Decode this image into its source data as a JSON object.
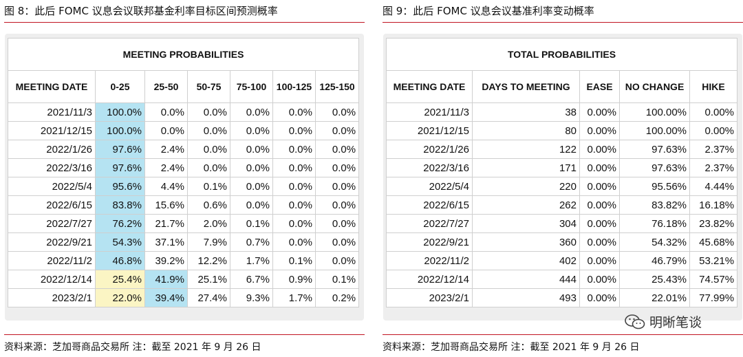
{
  "left": {
    "figure_title": "图 8：此后 FOMC 议息会议联邦基金利率目标区间预测概率",
    "table_title": "MEETING PROBABILITIES",
    "columns": [
      "MEETING DATE",
      "0-25",
      "25-50",
      "50-75",
      "75-100",
      "100-125",
      "125-150"
    ],
    "rows": [
      [
        "2021/11/3",
        "100.0%",
        "0.0%",
        "0.0%",
        "0.0%",
        "0.0%",
        "0.0%"
      ],
      [
        "2021/12/15",
        "100.0%",
        "0.0%",
        "0.0%",
        "0.0%",
        "0.0%",
        "0.0%"
      ],
      [
        "2022/1/26",
        "97.6%",
        "2.4%",
        "0.0%",
        "0.0%",
        "0.0%",
        "0.0%"
      ],
      [
        "2022/3/16",
        "97.6%",
        "2.4%",
        "0.0%",
        "0.0%",
        "0.0%",
        "0.0%"
      ],
      [
        "2022/5/4",
        "95.6%",
        "4.4%",
        "0.1%",
        "0.0%",
        "0.0%",
        "0.0%"
      ],
      [
        "2022/6/15",
        "83.8%",
        "15.6%",
        "0.6%",
        "0.0%",
        "0.0%",
        "0.0%"
      ],
      [
        "2022/7/27",
        "76.2%",
        "21.7%",
        "2.0%",
        "0.1%",
        "0.0%",
        "0.0%"
      ],
      [
        "2022/9/21",
        "54.3%",
        "37.1%",
        "7.9%",
        "0.7%",
        "0.0%",
        "0.0%"
      ],
      [
        "2022/11/2",
        "46.8%",
        "39.2%",
        "12.2%",
        "1.7%",
        "0.1%",
        "0.0%"
      ],
      [
        "2022/12/14",
        "25.4%",
        "41.9%",
        "25.1%",
        "6.7%",
        "0.9%",
        "0.1%"
      ],
      [
        "2023/2/1",
        "22.0%",
        "39.4%",
        "27.4%",
        "9.3%",
        "1.7%",
        "0.2%"
      ]
    ],
    "highlight_colors": {
      "blue": "#b5e3f2",
      "yellow": "#fbf5c4"
    },
    "source": "资料来源：芝加哥商品交易所 注：截至 2021 年 9 月 26 日"
  },
  "right": {
    "figure_title": "图 9：此后 FOMC 议息会议基准利率变动概率",
    "table_title": "TOTAL PROBABILITIES",
    "columns": [
      "MEETING DATE",
      "DAYS TO MEETING",
      "EASE",
      "NO CHANGE",
      "HIKE"
    ],
    "rows": [
      [
        "2021/11/3",
        "38",
        "0.00%",
        "100.00%",
        "0.00%"
      ],
      [
        "2021/12/15",
        "80",
        "0.00%",
        "100.00%",
        "0.00%"
      ],
      [
        "2022/1/26",
        "122",
        "0.00%",
        "97.63%",
        "2.37%"
      ],
      [
        "2022/3/16",
        "171",
        "0.00%",
        "97.63%",
        "2.37%"
      ],
      [
        "2022/5/4",
        "220",
        "0.00%",
        "95.56%",
        "4.44%"
      ],
      [
        "2022/6/15",
        "262",
        "0.00%",
        "83.82%",
        "16.18%"
      ],
      [
        "2022/7/27",
        "304",
        "0.00%",
        "76.18%",
        "23.82%"
      ],
      [
        "2022/9/21",
        "360",
        "0.00%",
        "54.32%",
        "45.68%"
      ],
      [
        "2022/11/2",
        "402",
        "0.00%",
        "46.79%",
        "53.21%"
      ],
      [
        "2022/12/14",
        "444",
        "0.00%",
        "25.43%",
        "74.57%"
      ],
      [
        "2023/2/1",
        "493",
        "0.00%",
        "22.01%",
        "77.99%"
      ]
    ],
    "source": "资料来源：芝加哥商品交易所 注：截至 2021 年 9 月 26 日"
  },
  "watermark": {
    "text": "明晰笔谈",
    "icon": "wechat-icon"
  },
  "colors": {
    "rule": "#c1121f",
    "frame": "#eeeeee",
    "grid": "#cfcfcf"
  }
}
